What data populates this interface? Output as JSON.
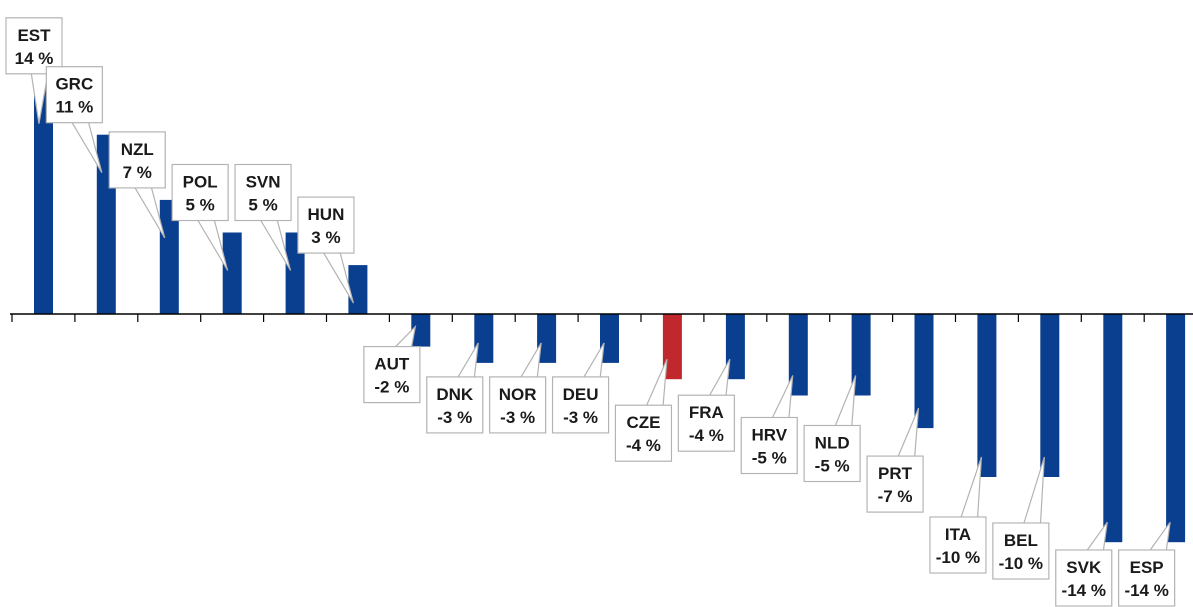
{
  "chart_data": {
    "type": "bar",
    "categories": [
      "EST",
      "GRC",
      "NZL",
      "POL",
      "SVN",
      "HUN",
      "AUT",
      "DNK",
      "NOR",
      "DEU",
      "CZE",
      "FRA",
      "HRV",
      "NLD",
      "PRT",
      "ITA",
      "BEL",
      "SVK",
      "ESP"
    ],
    "values": [
      14,
      11,
      7,
      5,
      5,
      3,
      -2,
      -3,
      -3,
      -3,
      -4,
      -4,
      -5,
      -5,
      -7,
      -10,
      -10,
      -14,
      -14
    ],
    "value_labels": [
      "14 %",
      "11 %",
      "7 %",
      "5 %",
      "5 %",
      "3 %",
      "-2 %",
      "-3 %",
      "-3 %",
      "-3 %",
      "-4 %",
      "-4 %",
      "-5 %",
      "-5 %",
      "-7 %",
      "-10 %",
      "-10 %",
      "-14 %",
      "-14 %"
    ],
    "highlight": "CZE",
    "colors": {
      "bar": "#0a3f8f",
      "highlight": "#c0282d",
      "axis": "#000000",
      "callout_border": "#b3b3b3"
    },
    "title": "",
    "xlabel": "",
    "ylabel": "",
    "ylim": [
      -14.5,
      14.5
    ],
    "grid": false,
    "legend": "none"
  }
}
